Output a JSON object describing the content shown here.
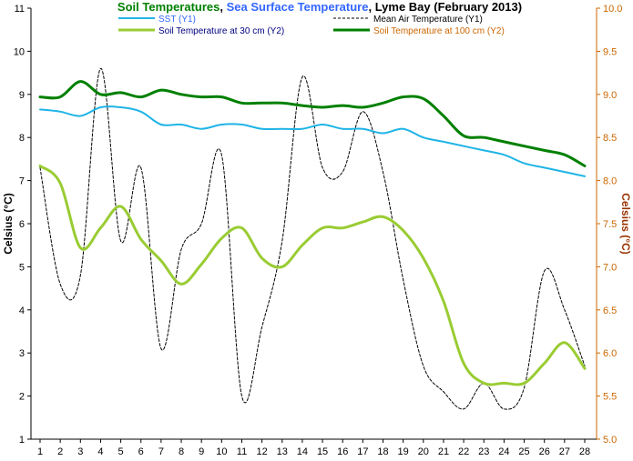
{
  "chart_data": {
    "type": "line",
    "title_parts": [
      {
        "text": "Soil Temperatures",
        "color": "#008000"
      },
      {
        "text": ", ",
        "color": "#000000"
      },
      {
        "text": "Sea Surface Temperature",
        "color": "#3366ff"
      },
      {
        "text": ", Lyme Bay (February 2013)",
        "color": "#000000"
      }
    ],
    "ylabel": "Celsius (°C)",
    "y2label": "Celsius (°C)",
    "x": [
      1,
      2,
      3,
      4,
      5,
      6,
      7,
      8,
      9,
      10,
      11,
      12,
      13,
      14,
      15,
      16,
      17,
      18,
      19,
      20,
      21,
      22,
      23,
      24,
      25,
      26,
      27,
      28
    ],
    "x_ticks": [
      "1",
      "2",
      "3",
      "4",
      "5",
      "6",
      "7",
      "8",
      "9",
      "10",
      "11",
      "12",
      "13",
      "14",
      "15",
      "16",
      "17",
      "18",
      "19",
      "20",
      "21",
      "22",
      "23",
      "24",
      "25",
      "26",
      "27",
      "28"
    ],
    "ylim": [
      1,
      11
    ],
    "y_ticks": [
      "1",
      "2",
      "3",
      "4",
      "5",
      "6",
      "7",
      "8",
      "9",
      "10",
      "11"
    ],
    "y2lim": [
      5.0,
      10.0
    ],
    "y2_ticks": [
      "5.0",
      "5.5",
      "6.0",
      "6.5",
      "7.0",
      "7.5",
      "8.0",
      "8.5",
      "9.0",
      "9.5",
      "10.0"
    ],
    "grid": false,
    "legend_position": "top",
    "colors": {
      "sst": "#1fb4e6",
      "air": "#000000",
      "soil30": "#99cc33",
      "soil100": "#008000",
      "y2_axis": "#cc6600"
    },
    "series": [
      {
        "key": "sst",
        "name": "SST (Y1)",
        "legend_color": "#3366ff",
        "axis": "y1",
        "values": [
          8.65,
          8.6,
          8.5,
          8.7,
          8.7,
          8.6,
          8.3,
          8.3,
          8.2,
          8.3,
          8.3,
          8.2,
          8.2,
          8.2,
          8.3,
          8.2,
          8.2,
          8.1,
          8.2,
          8.0,
          7.9,
          7.8,
          7.7,
          7.6,
          7.4,
          7.3,
          7.2,
          7.1
        ]
      },
      {
        "key": "air",
        "name": "Mean Air Temperature (Y1)",
        "legend_color": "#000000",
        "axis": "y1",
        "values": [
          7.3,
          4.6,
          4.8,
          9.6,
          5.6,
          7.3,
          3.1,
          5.4,
          6.0,
          7.6,
          2.0,
          3.6,
          5.6,
          9.4,
          7.3,
          7.2,
          8.6,
          7.2,
          4.7,
          2.7,
          2.1,
          1.7,
          2.3,
          1.7,
          2.2,
          4.9,
          4.0,
          2.7
        ]
      },
      {
        "key": "soil30",
        "name": "Soil Temperature at 30 cm (Y2)",
        "legend_color": "#000080",
        "axis": "y2",
        "values": [
          8.17,
          7.97,
          7.22,
          7.45,
          7.7,
          7.32,
          7.07,
          6.8,
          7.03,
          7.33,
          7.45,
          7.1,
          7.0,
          7.25,
          7.45,
          7.45,
          7.52,
          7.58,
          7.42,
          7.1,
          6.6,
          5.88,
          5.65,
          5.65,
          5.65,
          5.88,
          6.12,
          5.82
        ]
      },
      {
        "key": "soil100",
        "name": "Soil Temperature at 100 cm (Y2)",
        "legend_color": "#cc6600",
        "axis": "y2",
        "values": [
          8.97,
          8.97,
          9.15,
          9.0,
          9.02,
          8.97,
          9.05,
          9.0,
          8.97,
          8.97,
          8.9,
          8.9,
          8.9,
          8.87,
          8.85,
          8.87,
          8.85,
          8.9,
          8.97,
          8.95,
          8.75,
          8.52,
          8.5,
          8.45,
          8.4,
          8.35,
          8.3,
          8.17
        ]
      }
    ]
  }
}
